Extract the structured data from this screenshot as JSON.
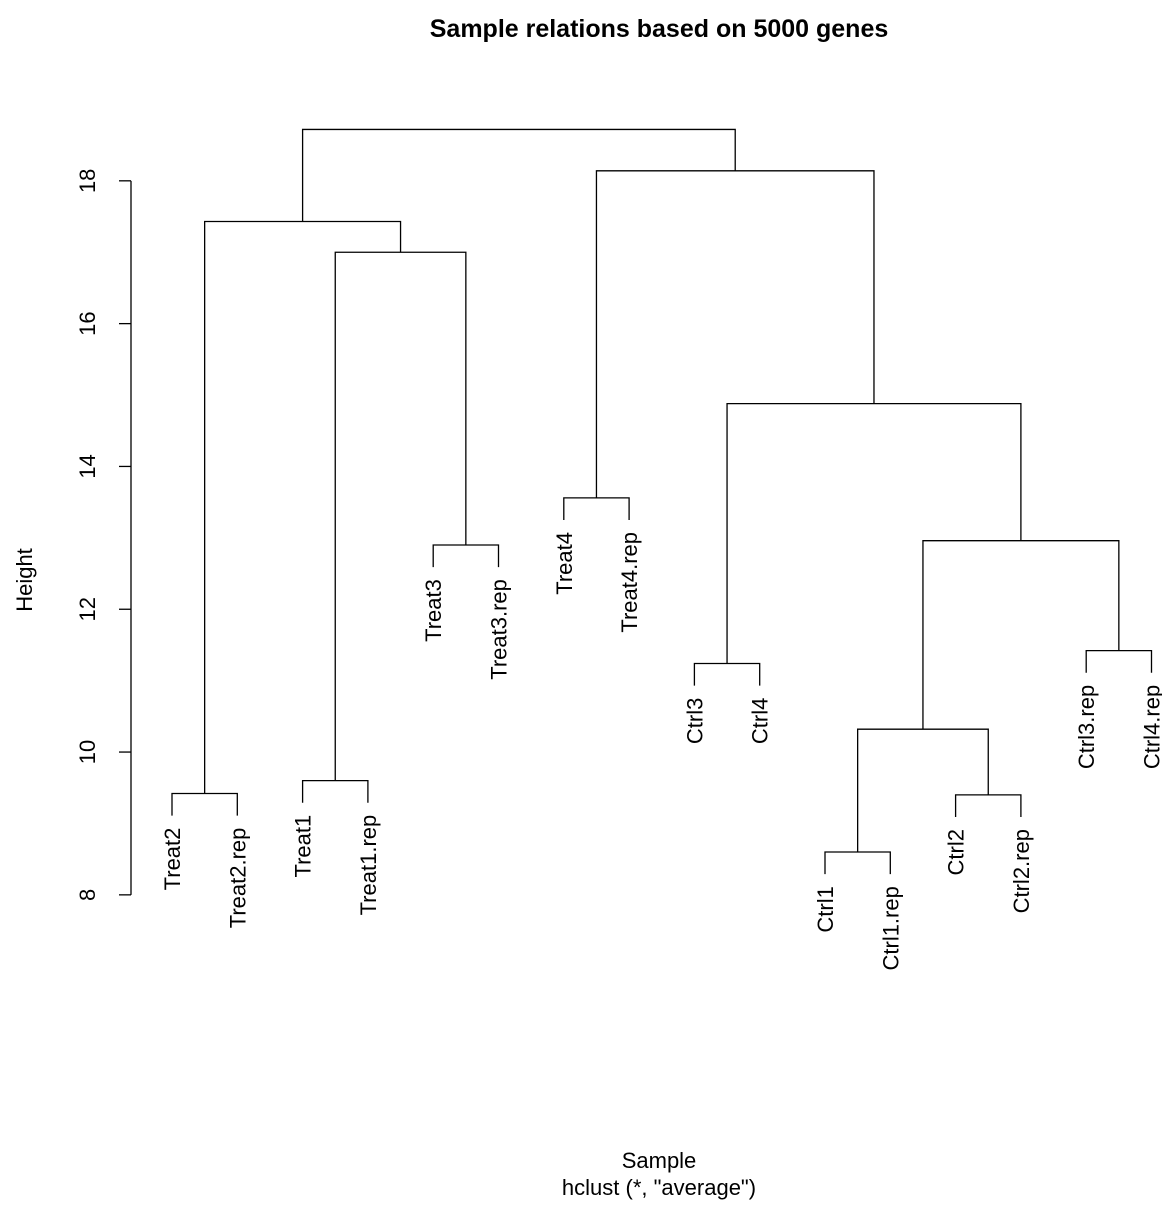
{
  "chart_data": {
    "type": "dendrogram",
    "title": "Sample relations based on 5000 genes",
    "xlabel": "Sample",
    "sublabel": "hclust (*, \"average\")",
    "ylabel": "Height",
    "ylim": [
      7.9,
      19.3
    ],
    "yticks": [
      8,
      10,
      12,
      14,
      16,
      18
    ],
    "leaf_hang_height": 0.31,
    "leaves": [
      "Treat2",
      "Treat2.rep",
      "Treat1",
      "Treat1.rep",
      "Treat3",
      "Treat3.rep",
      "Treat4",
      "Treat4.rep",
      "Ctrl3",
      "Ctrl4",
      "Ctrl1",
      "Ctrl1.rep",
      "Ctrl2",
      "Ctrl2.rep",
      "Ctrl3.rep",
      "Ctrl4.rep"
    ],
    "merges": [
      {
        "left": "Ctrl1",
        "right": "Ctrl1.rep",
        "height": 8.6
      },
      {
        "left": "Ctrl2",
        "right": "Ctrl2.rep",
        "height": 9.4
      },
      {
        "left": "Treat2",
        "right": "Treat2.rep",
        "height": 9.42
      },
      {
        "left": "Treat1",
        "right": "Treat1.rep",
        "height": 9.6
      },
      {
        "left": "m1",
        "right": "m2",
        "height": 10.32
      },
      {
        "left": "Ctrl3",
        "right": "Ctrl4",
        "height": 11.24
      },
      {
        "left": "Ctrl3.rep",
        "right": "Ctrl4.rep",
        "height": 11.42
      },
      {
        "left": "Treat3",
        "right": "Treat3.rep",
        "height": 12.9
      },
      {
        "left": "m5",
        "right": "m7",
        "height": 12.96
      },
      {
        "left": "Treat4",
        "right": "Treat4.rep",
        "height": 13.56
      },
      {
        "left": "m6",
        "right": "m9",
        "height": 14.88
      },
      {
        "left": "m4",
        "right": "m8",
        "height": 17.0
      },
      {
        "left": "m3",
        "right": "m12",
        "height": 17.43
      },
      {
        "left": "m10",
        "right": "m11",
        "height": 18.14
      },
      {
        "left": "m13",
        "right": "m14",
        "height": 18.72
      }
    ]
  }
}
